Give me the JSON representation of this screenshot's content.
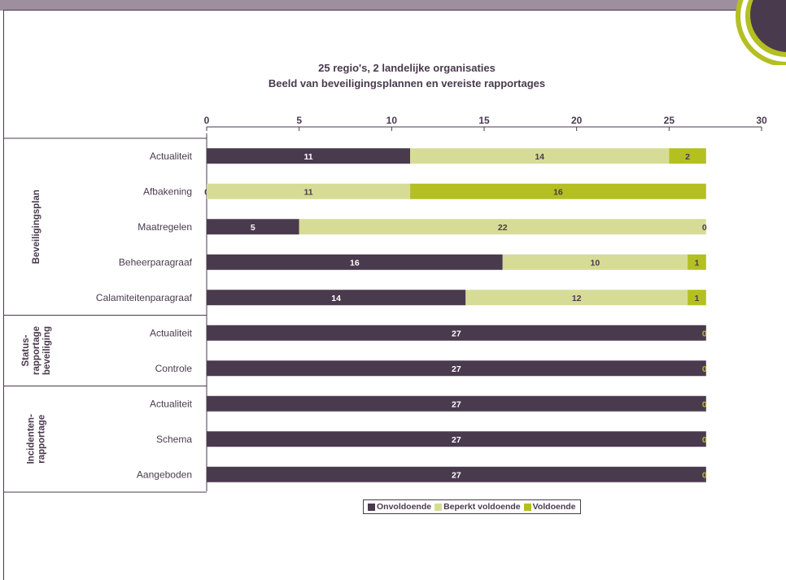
{
  "chart_data": {
    "type": "bar",
    "orientation": "horizontal",
    "stacked": true,
    "title": "25 regio's, 2 landelijke organisaties",
    "subtitle": "Beeld van beveiligingsplannen en vereiste rapportages",
    "xlim": [
      0,
      30
    ],
    "xticks": [
      "0",
      "5",
      "10",
      "15",
      "20",
      "25",
      "30"
    ],
    "groups": [
      {
        "label": "Beveiligingsplan",
        "categories": [
          "Actualiteit",
          "Afbakening",
          "Maatregelen",
          "Beheerparagraaf",
          "Calamiteitenparagraaf"
        ]
      },
      {
        "label": "Status-rapportage beveiliging",
        "label_lines": [
          "Status-",
          "rapportage",
          "beveiliging"
        ],
        "categories": [
          "Actualiteit",
          "Controle"
        ]
      },
      {
        "label": "Incidenten-rapportage",
        "label_lines": [
          "Incidenten-",
          "rapportage"
        ],
        "categories": [
          "Actualiteit",
          "Schema",
          "Aangeboden"
        ]
      }
    ],
    "categories": [
      "Actualiteit",
      "Afbakening",
      "Maatregelen",
      "Beheerparagraaf",
      "Calamiteitenparagraaf",
      "Actualiteit",
      "Controle",
      "Actualiteit",
      "Schema",
      "Aangeboden"
    ],
    "series": [
      {
        "name": "Onvoldoende",
        "color": "#4a3a4e",
        "label_color": "#ffffff",
        "values": [
          11,
          0,
          5,
          16,
          14,
          27,
          27,
          27,
          27,
          27
        ]
      },
      {
        "name": "Beperkt voldoende",
        "color": "#d6dc96",
        "label_color": "#4a3a4e",
        "values": [
          14,
          11,
          22,
          10,
          12,
          0,
          0,
          0,
          0,
          0
        ]
      },
      {
        "name": "Voldoende",
        "color": "#b4bf22",
        "label_color": "#4a3a4e",
        "values": [
          2,
          16,
          0,
          1,
          1,
          0,
          0,
          0,
          0,
          0
        ]
      }
    ],
    "grid": false,
    "legend_position": "bottom-center"
  },
  "legend": [
    {
      "name": "Onvoldoende",
      "color": "#4a3a4e"
    },
    {
      "name": "Beperkt voldoende",
      "color": "#d6dc96"
    },
    {
      "name": "Voldoende",
      "color": "#b4bf22"
    }
  ],
  "colors": {
    "frame": "#4a3a4e",
    "band": "#9d8f9d",
    "accent": "#b4bf22",
    "dark": "#4a3a4e"
  }
}
